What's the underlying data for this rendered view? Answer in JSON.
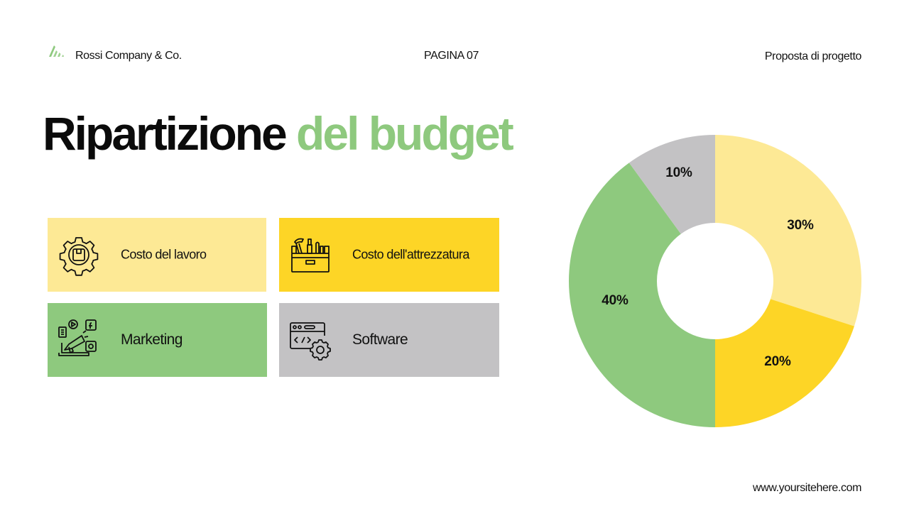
{
  "header": {
    "company": "Rossi Company & Co.",
    "page": "PAGINA 07",
    "document_type": "Proposta di progetto",
    "logo_icon": "stacked-leaf-logo-icon"
  },
  "title": {
    "part1": "Ripartizione",
    "part2": "del budget"
  },
  "categories": [
    {
      "label": "Costo del lavoro",
      "icon": "gear-box-icon",
      "color": "#fde995"
    },
    {
      "label": "Costo dell'attrezzatura",
      "icon": "toolbox-icon",
      "color": "#fdd526"
    },
    {
      "label": "Marketing",
      "icon": "megaphone-social-icon",
      "color": "#8ec97e"
    },
    {
      "label": "Software",
      "icon": "code-window-gear-icon",
      "color": "#c3c2c4"
    }
  ],
  "chart_data": {
    "type": "pie",
    "donut": true,
    "title": "",
    "categories": [
      "Costo del lavoro",
      "Costo dell'attrezzatura",
      "Marketing",
      "Software"
    ],
    "values": [
      30,
      20,
      40,
      10
    ],
    "labels": [
      "30%",
      "20%",
      "40%",
      "10%"
    ],
    "colors": [
      "#fde995",
      "#fdd526",
      "#8ec97e",
      "#c3c2c4"
    ],
    "start_angle_deg": 0,
    "direction": "clockwise",
    "legend": "none (category cards at left act as legend)"
  },
  "footer": {
    "url": "www.yoursitehere.com"
  }
}
